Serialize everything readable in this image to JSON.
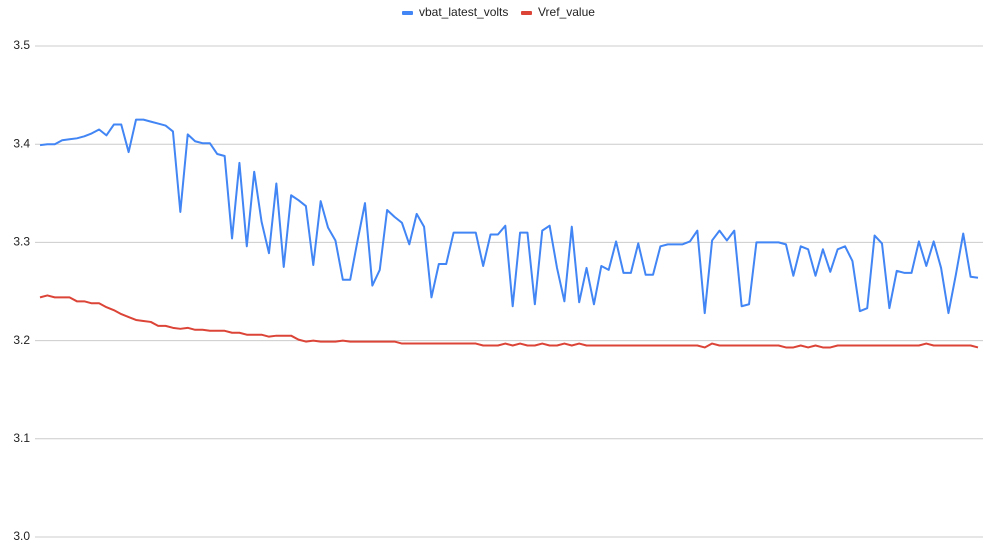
{
  "chart_data": {
    "type": "line",
    "categories": [
      null,
      null,
      null,
      null,
      null,
      null,
      null,
      null,
      null,
      null,
      null,
      null,
      null,
      null,
      null,
      null,
      null,
      null,
      null,
      null,
      null,
      null,
      null,
      null,
      null,
      null,
      null,
      null,
      null,
      null,
      null,
      null,
      null,
      null,
      null,
      null,
      null,
      null,
      null,
      null,
      null,
      null,
      null,
      null,
      null,
      null,
      null,
      null,
      null,
      null,
      null,
      null,
      null,
      null,
      null,
      null,
      null,
      null,
      null,
      null,
      null,
      null,
      null,
      null,
      null,
      null,
      null,
      null,
      null,
      null,
      null,
      null,
      null,
      null,
      null,
      null,
      null,
      null,
      null,
      null,
      null,
      null,
      null,
      null,
      null,
      null,
      null,
      null,
      null,
      null,
      null,
      null,
      null,
      null,
      null,
      null,
      null,
      null,
      null,
      null,
      null,
      null,
      null,
      null,
      null,
      null,
      null,
      null,
      null,
      null,
      null,
      null,
      null,
      null,
      null,
      null,
      null,
      null,
      null,
      null,
      null,
      null,
      null,
      null,
      null,
      null,
      null,
      null
    ],
    "series": [
      {
        "name": "vbat_latest_volts",
        "color": "#4285f4",
        "values": [
          3.399,
          3.4,
          3.4,
          3.404,
          3.405,
          3.406,
          3.408,
          3.411,
          3.415,
          3.409,
          3.42,
          3.42,
          3.392,
          3.425,
          3.425,
          3.423,
          3.421,
          3.419,
          3.413,
          3.331,
          3.41,
          3.403,
          3.401,
          3.401,
          3.39,
          3.388,
          3.304,
          3.381,
          3.296,
          3.372,
          3.321,
          3.289,
          3.36,
          3.275,
          3.348,
          3.343,
          3.337,
          3.277,
          3.342,
          3.315,
          3.302,
          3.262,
          3.262,
          3.302,
          3.34,
          3.256,
          3.272,
          3.333,
          3.326,
          3.32,
          3.298,
          3.329,
          3.316,
          3.244,
          3.278,
          3.278,
          3.31,
          3.31,
          3.31,
          3.31,
          3.276,
          3.308,
          3.308,
          3.317,
          3.235,
          3.31,
          3.31,
          3.237,
          3.312,
          3.317,
          3.274,
          3.24,
          3.316,
          3.239,
          3.274,
          3.237,
          3.276,
          3.272,
          3.301,
          3.269,
          3.269,
          3.299,
          3.267,
          3.267,
          3.296,
          3.298,
          3.298,
          3.298,
          3.301,
          3.312,
          3.228,
          3.302,
          3.312,
          3.302,
          3.312,
          3.235,
          3.237,
          3.3,
          3.3,
          3.3,
          3.3,
          3.298,
          3.266,
          3.296,
          3.293,
          3.266,
          3.293,
          3.27,
          3.293,
          3.296,
          3.281,
          3.23,
          3.233,
          3.307,
          3.299,
          3.233,
          3.271,
          3.269,
          3.269,
          3.301,
          3.276,
          3.301,
          3.274,
          3.228,
          3.267,
          3.309,
          3.265,
          3.264
        ]
      },
      {
        "name": "Vref_value",
        "color": "#db4437",
        "values": [
          3.244,
          3.246,
          3.244,
          3.244,
          3.244,
          3.24,
          3.24,
          3.238,
          3.238,
          3.234,
          3.231,
          3.227,
          3.224,
          3.221,
          3.22,
          3.219,
          3.215,
          3.215,
          3.213,
          3.212,
          3.213,
          3.211,
          3.211,
          3.21,
          3.21,
          3.21,
          3.208,
          3.208,
          3.206,
          3.206,
          3.206,
          3.204,
          3.205,
          3.205,
          3.205,
          3.201,
          3.199,
          3.2,
          3.199,
          3.199,
          3.199,
          3.2,
          3.199,
          3.199,
          3.199,
          3.199,
          3.199,
          3.199,
          3.199,
          3.197,
          3.197,
          3.197,
          3.197,
          3.197,
          3.197,
          3.197,
          3.197,
          3.197,
          3.197,
          3.197,
          3.195,
          3.195,
          3.195,
          3.197,
          3.195,
          3.197,
          3.195,
          3.195,
          3.197,
          3.195,
          3.195,
          3.197,
          3.195,
          3.197,
          3.195,
          3.195,
          3.195,
          3.195,
          3.195,
          3.195,
          3.195,
          3.195,
          3.195,
          3.195,
          3.195,
          3.195,
          3.195,
          3.195,
          3.195,
          3.195,
          3.193,
          3.197,
          3.195,
          3.195,
          3.195,
          3.195,
          3.195,
          3.195,
          3.195,
          3.195,
          3.195,
          3.193,
          3.193,
          3.195,
          3.193,
          3.195,
          3.193,
          3.193,
          3.195,
          3.195,
          3.195,
          3.195,
          3.195,
          3.195,
          3.195,
          3.195,
          3.195,
          3.195,
          3.195,
          3.195,
          3.197,
          3.195,
          3.195,
          3.195,
          3.195,
          3.195,
          3.195,
          3.193
        ]
      }
    ],
    "ylim": [
      3.0,
      3.5
    ],
    "yticks": [
      {
        "value": 3,
        "label": "3.0"
      },
      3.1,
      3.2,
      3.3,
      3.4,
      3.5
    ],
    "grid": true,
    "legend": "top"
  }
}
